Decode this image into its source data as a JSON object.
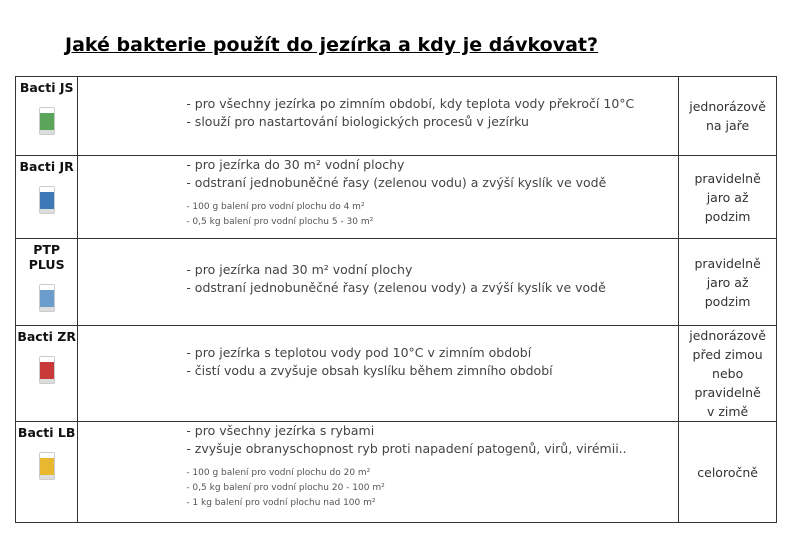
{
  "title": "Jaké bakterie použít do jezírka a kdy je dávkovat?",
  "rows": [
    {
      "name": "Bacti JS",
      "color": "#5aa55a",
      "lines": [
        "- pro všechny jezírka po zimním období, kdy teplota vody překročí 10°C",
        "- slouží pro nastartování biologických procesů v jezírku"
      ],
      "small": [],
      "dosing": "jednorázově na jaře"
    },
    {
      "name": "Bacti JR",
      "color": "#3f78b8",
      "lines": [
        "- pro jezírka do 30 m² vodní plochy",
        "- odstraní jednobuněčné řasy (zelenou vodu) a zvýší kyslík ve vodě"
      ],
      "small": [
        "- 100 g balení pro vodní plochu do 4 m²",
        "- 0,5 kg balení pro vodní plochu 5 - 30 m²"
      ],
      "dosing": "pravidelně jaro až podzim"
    },
    {
      "name": "PTP PLUS",
      "color": "#6a9ccc",
      "lines": [
        "- pro jezírka nad 30 m² vodní plochy",
        "- odstraní jednobuněčné řasy (zelenou vody) a zvýší kyslík ve vodě"
      ],
      "small": [],
      "dosing": "pravidelně jaro až podzim"
    },
    {
      "name": "Bacti ZR",
      "color": "#c83a3a",
      "lines": [
        "- pro jezírka s teplotou vody pod 10°C v zimním období",
        "- čistí vodu a zvyšuje obsah kyslíku během zimního období"
      ],
      "small": [],
      "dosing": "jednorázově před zimou nebo pravidelně v zimě"
    },
    {
      "name": "Bacti LB",
      "color": "#e8b830",
      "lines": [
        "- pro všechny jezírka s rybami",
        "- zvyšuje obranyschopnost ryb proti napadení patogenů, virů, virémii.."
      ],
      "small": [
        "- 100 g balení pro vodní plochu do 20 m²",
        "- 0,5 kg balení pro vodní plochu 20 - 100 m²",
        "- 1 kg balení pro vodní plochu nad 100 m²"
      ],
      "dosing": "celoročně"
    }
  ]
}
